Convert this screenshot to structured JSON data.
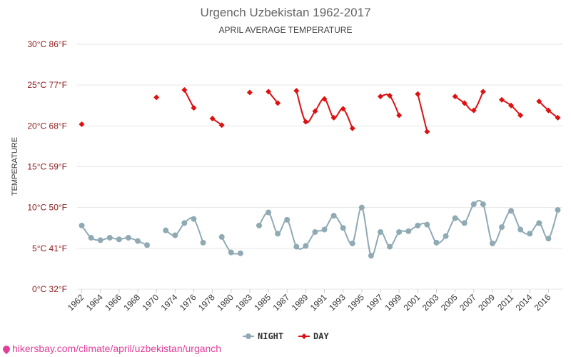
{
  "chart_data": {
    "type": "line",
    "title": "Urgench Uzbekistan 1962-2017",
    "subtitle": "APRIL AVERAGE TEMPERATURE",
    "ylabel": "TEMPERATURE",
    "ylim": [
      0,
      30
    ],
    "y_ticks": [
      {
        "value": 0,
        "label": "0°C 32°F"
      },
      {
        "value": 5,
        "label": "5°C 41°F"
      },
      {
        "value": 10,
        "label": "10°C 50°F"
      },
      {
        "value": 15,
        "label": "15°C 59°F"
      },
      {
        "value": 20,
        "label": "20°C 68°F"
      },
      {
        "value": 25,
        "label": "25°C 77°F"
      },
      {
        "value": 30,
        "label": "30°C 86°F"
      }
    ],
    "grid": true,
    "legend_position": "bottom-center",
    "x": [
      "1962",
      "1963",
      "1964",
      "1965",
      "1966",
      "1967",
      "1968",
      "1969",
      "1970",
      "1971",
      "1974",
      "1975",
      "1976",
      "1977",
      "1978",
      "1979",
      "1980",
      "1981",
      "1983",
      "1984",
      "1985",
      "1986",
      "1987",
      "1988",
      "1989",
      "1990",
      "1991",
      "1992",
      "1993",
      "1994",
      "1995",
      "1996",
      "1997",
      "1998",
      "1999",
      "2000",
      "2001",
      "2002",
      "2003",
      "2004",
      "2005",
      "2006",
      "2007",
      "2008",
      "2009",
      "2010",
      "2011",
      "2012",
      "2014",
      "2015",
      "2016",
      "2017"
    ],
    "x_tick_labels": [
      "1962",
      "1964",
      "1966",
      "1968",
      "1970",
      "1974",
      "1976",
      "1978",
      "1980",
      "1983",
      "1985",
      "1987",
      "1989",
      "1991",
      "1993",
      "1995",
      "1997",
      "1999",
      "2001",
      "2003",
      "2005",
      "2007",
      "2009",
      "2011",
      "2014",
      "2016"
    ],
    "series": [
      {
        "name": "NIGHT",
        "color": "#90aab4",
        "marker": "circle",
        "values": [
          7.8,
          6.3,
          6.0,
          6.3,
          6.1,
          6.3,
          5.9,
          5.4,
          null,
          7.2,
          6.6,
          8.1,
          8.6,
          5.7,
          null,
          6.4,
          4.5,
          4.4,
          null,
          7.8,
          9.4,
          6.8,
          8.5,
          5.2,
          5.3,
          7.0,
          7.3,
          9.0,
          7.5,
          5.6,
          10.0,
          4.1,
          7.0,
          5.2,
          7.0,
          7.1,
          7.8,
          7.9,
          5.7,
          6.5,
          8.7,
          8.1,
          10.4,
          10.4,
          5.6,
          7.6,
          9.6,
          7.3,
          6.8,
          8.1,
          6.2,
          9.7
        ]
      },
      {
        "name": "DAY",
        "color": "#dd1111",
        "marker": "diamond",
        "values": [
          20.2,
          null,
          null,
          null,
          null,
          null,
          null,
          null,
          23.5,
          null,
          null,
          24.4,
          22.2,
          null,
          20.9,
          20.1,
          null,
          null,
          24.1,
          null,
          24.2,
          22.8,
          null,
          24.3,
          20.5,
          21.8,
          23.3,
          21.0,
          22.1,
          19.7,
          null,
          null,
          23.6,
          23.7,
          21.3,
          null,
          23.9,
          19.3,
          null,
          null,
          23.6,
          22.8,
          21.9,
          24.2,
          null,
          23.2,
          22.5,
          21.3,
          null,
          23.0,
          21.9,
          21.0
        ]
      }
    ]
  },
  "watermark": "hikersbay.com/climate/april/uzbekistan/urganch"
}
